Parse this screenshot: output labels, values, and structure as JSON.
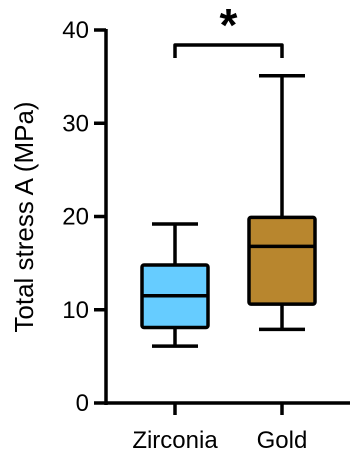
{
  "chart_data": {
    "type": "box",
    "ylabel": "Total stress A (MPa)",
    "ylim": [
      0,
      40
    ],
    "yticks": [
      0,
      10,
      20,
      30,
      40
    ],
    "categories": [
      "Zirconia",
      "Gold"
    ],
    "series": [
      {
        "category": "Zirconia",
        "min": 6.1,
        "q1": 8.1,
        "median": 11.5,
        "q3": 14.8,
        "max": 19.2,
        "color": "#66ccff"
      },
      {
        "category": "Gold",
        "min": 7.9,
        "q1": 10.6,
        "median": 16.8,
        "q3": 19.9,
        "max": 35.1,
        "color": "#b8862e"
      }
    ],
    "annotations": [
      {
        "text": "*",
        "between": [
          "Zirconia",
          "Gold"
        ]
      }
    ],
    "grid": false
  }
}
